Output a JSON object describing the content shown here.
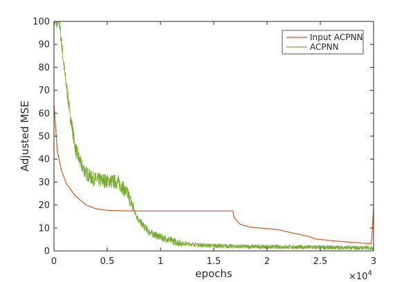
{
  "chart_data": {
    "type": "line",
    "title": "",
    "xlabel": "epochs",
    "ylabel": "Adjusted MSE",
    "x_exponent_label": "×10",
    "x_exponent_power": "4",
    "xlim": [
      0,
      30000
    ],
    "ylim": [
      0,
      100
    ],
    "x_ticks": [
      0,
      5000,
      10000,
      15000,
      20000,
      25000,
      30000
    ],
    "x_tick_labels": [
      "0",
      "0.5",
      "1",
      "1.5",
      "2",
      "2.5",
      "3"
    ],
    "y_ticks": [
      0,
      10,
      20,
      30,
      40,
      50,
      60,
      70,
      80,
      90,
      100
    ],
    "y_tick_labels": [
      "0",
      "10",
      "20",
      "30",
      "40",
      "50",
      "60",
      "70",
      "80",
      "90",
      "100"
    ],
    "grid": false,
    "legend_position": "top-right",
    "series": [
      {
        "name": "Input ACPNN",
        "color": "#d95319",
        "points": [
          [
            0,
            64
          ],
          [
            300,
            44
          ],
          [
            700,
            35
          ],
          [
            1200,
            29
          ],
          [
            2000,
            24
          ],
          [
            3000,
            20
          ],
          [
            4000,
            18.3
          ],
          [
            5000,
            17.7
          ],
          [
            6000,
            17.5
          ],
          [
            8000,
            17.4
          ],
          [
            10000,
            17.4
          ],
          [
            12000,
            17.4
          ],
          [
            14000,
            17.4
          ],
          [
            16000,
            17.4
          ],
          [
            16800,
            17.4
          ],
          [
            16900,
            14.5
          ],
          [
            17500,
            11.5
          ],
          [
            18500,
            10.3
          ],
          [
            20000,
            9.7
          ],
          [
            21000,
            9.3
          ],
          [
            22000,
            8.2
          ],
          [
            23000,
            7.2
          ],
          [
            24000,
            6.2
          ],
          [
            24500,
            5.2
          ],
          [
            26000,
            4.5
          ],
          [
            28000,
            3.7
          ],
          [
            29800,
            3.1
          ],
          [
            30000,
            19
          ]
        ]
      },
      {
        "name": "ACPNN",
        "color": "#77ac30",
        "points": [
          [
            0,
            100
          ],
          [
            500,
            100
          ],
          [
            1000,
            78
          ],
          [
            1500,
            60
          ],
          [
            2000,
            45
          ],
          [
            2500,
            38
          ],
          [
            3000,
            34
          ],
          [
            3500,
            32
          ],
          [
            4000,
            31
          ],
          [
            5000,
            30.5
          ],
          [
            6000,
            30
          ],
          [
            6400,
            28
          ],
          [
            7000,
            24
          ],
          [
            7500,
            18
          ],
          [
            8000,
            13
          ],
          [
            9000,
            8
          ],
          [
            10000,
            6
          ],
          [
            11000,
            4.5
          ],
          [
            12000,
            3.3
          ],
          [
            14000,
            2.5
          ],
          [
            16000,
            2.1
          ],
          [
            18000,
            1.9
          ],
          [
            20000,
            1.8
          ],
          [
            24000,
            1.6
          ],
          [
            28000,
            1.4
          ],
          [
            30000,
            1.3
          ]
        ]
      }
    ]
  }
}
